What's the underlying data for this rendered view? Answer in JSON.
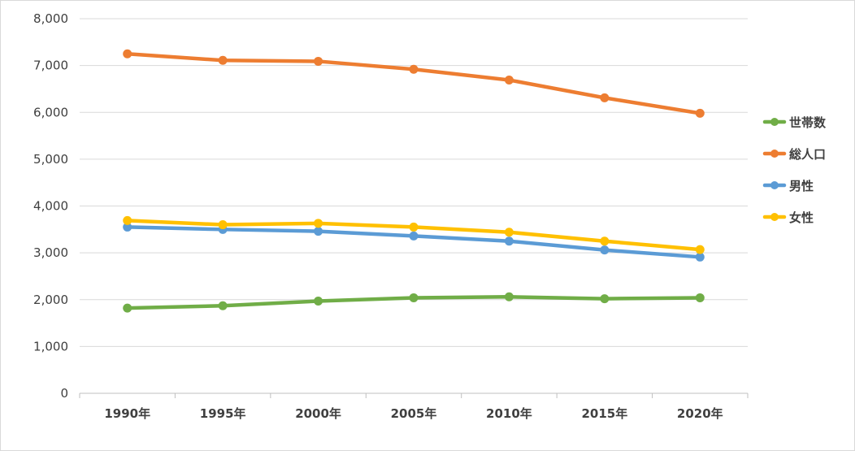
{
  "chart_data": {
    "type": "line",
    "categories": [
      "1990年",
      "1995年",
      "2000年",
      "2005年",
      "2010年",
      "2015年",
      "2020年"
    ],
    "ylim": [
      0,
      8000
    ],
    "yticks": [
      "0",
      "1,000",
      "2,000",
      "3,000",
      "4,000",
      "5,000",
      "6,000",
      "7,000",
      "8,000"
    ],
    "ytick_values": [
      0,
      1000,
      2000,
      3000,
      4000,
      5000,
      6000,
      7000,
      8000
    ],
    "grid": true,
    "legend_position": "right",
    "series": [
      {
        "name": "世帯数",
        "color": "#70ad47",
        "values": [
          1820,
          1870,
          1970,
          2040,
          2060,
          2020,
          2040
        ]
      },
      {
        "name": "総人口",
        "color": "#ed7d31",
        "values": [
          7250,
          7110,
          7090,
          6920,
          6690,
          6310,
          5980
        ]
      },
      {
        "name": "男性",
        "color": "#5b9bd5",
        "values": [
          3550,
          3500,
          3460,
          3360,
          3250,
          3060,
          2910
        ]
      },
      {
        "name": "女性",
        "color": "#ffc000",
        "values": [
          3690,
          3600,
          3630,
          3550,
          3440,
          3250,
          3070
        ]
      }
    ]
  }
}
